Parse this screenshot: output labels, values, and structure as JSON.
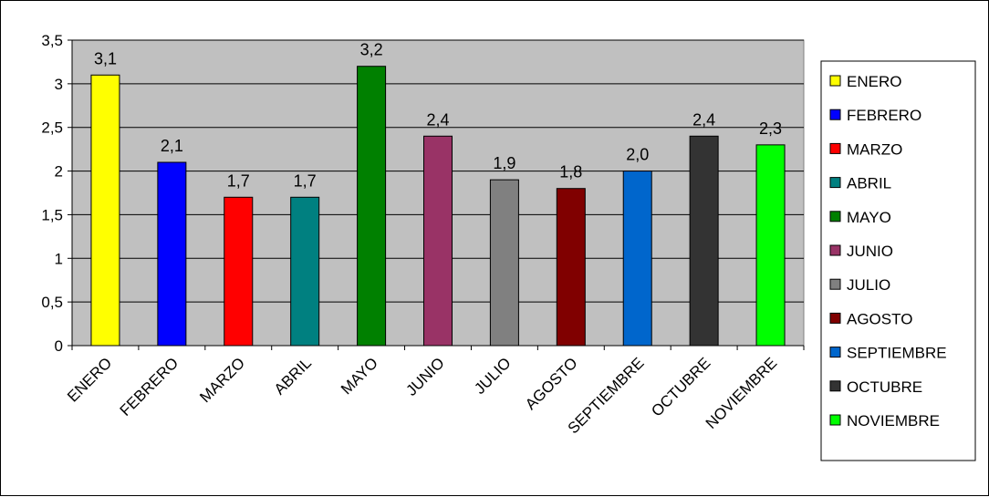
{
  "chart_data": {
    "type": "bar",
    "categories": [
      "ENERO",
      "FEBRERO",
      "MARZO",
      "ABRIL",
      "MAYO",
      "JUNIO",
      "JULIO",
      "AGOSTO",
      "SEPTIEMBRE",
      "OCTUBRE",
      "NOVIEMBRE"
    ],
    "values": [
      3.1,
      2.1,
      1.7,
      1.7,
      3.2,
      2.4,
      1.9,
      1.8,
      2.0,
      2.4,
      2.3
    ],
    "data_labels": [
      "3,1",
      "2,1",
      "1,7",
      "1,7",
      "3,2",
      "2,4",
      "1,9",
      "1,8",
      "2,0",
      "2,4",
      "2,3"
    ],
    "colors": [
      "#ffff00",
      "#0000ff",
      "#ff0000",
      "#008080",
      "#008000",
      "#993366",
      "#808080",
      "#800000",
      "#0066cc",
      "#333333",
      "#00ff00"
    ],
    "legend": [
      "ENERO",
      "FEBRERO",
      "MARZO",
      "ABRIL",
      "MAYO",
      "JUNIO",
      "JULIO",
      "AGOSTO",
      "SEPTIEMBRE",
      "OCTUBRE",
      "NOVIEMBRE"
    ],
    "legend_position": "right",
    "ylim": [
      0,
      3.5
    ],
    "y_ticks": [
      "0",
      "0,5",
      "1",
      "1,5",
      "2",
      "2,5",
      "3",
      "3,5"
    ],
    "grid": true,
    "plot_background": "#c0c0c0",
    "title": "",
    "xlabel": "",
    "ylabel": ""
  }
}
